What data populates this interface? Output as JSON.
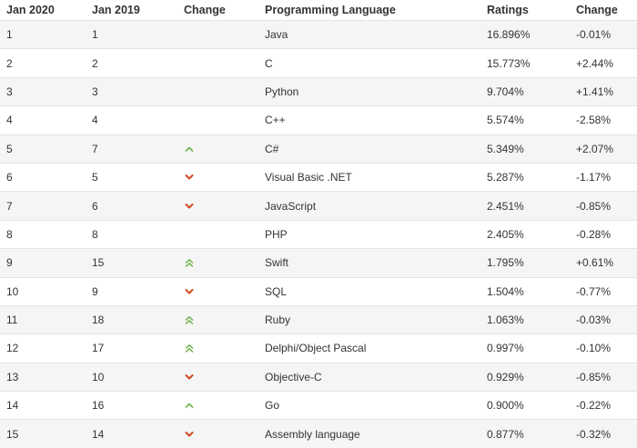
{
  "headers": [
    "Jan 2020",
    "Jan 2019",
    "Change",
    "Programming Language",
    "Ratings",
    "Change"
  ],
  "colors": {
    "up": "#6cb24a",
    "down": "#cf4b1f"
  },
  "rows": [
    {
      "rank": "1",
      "prev": "1",
      "change": "none",
      "language": "Java",
      "rating": "16.896%",
      "delta": "-0.01%"
    },
    {
      "rank": "2",
      "prev": "2",
      "change": "none",
      "language": "C",
      "rating": "15.773%",
      "delta": "+2.44%"
    },
    {
      "rank": "3",
      "prev": "3",
      "change": "none",
      "language": "Python",
      "rating": "9.704%",
      "delta": "+1.41%"
    },
    {
      "rank": "4",
      "prev": "4",
      "change": "none",
      "language": "C++",
      "rating": "5.574%",
      "delta": "-2.58%"
    },
    {
      "rank": "5",
      "prev": "7",
      "change": "up",
      "language": "C#",
      "rating": "5.349%",
      "delta": "+2.07%"
    },
    {
      "rank": "6",
      "prev": "5",
      "change": "down",
      "language": "Visual Basic .NET",
      "rating": "5.287%",
      "delta": "-1.17%"
    },
    {
      "rank": "7",
      "prev": "6",
      "change": "down",
      "language": "JavaScript",
      "rating": "2.451%",
      "delta": "-0.85%"
    },
    {
      "rank": "8",
      "prev": "8",
      "change": "none",
      "language": "PHP",
      "rating": "2.405%",
      "delta": "-0.28%"
    },
    {
      "rank": "9",
      "prev": "15",
      "change": "up-double",
      "language": "Swift",
      "rating": "1.795%",
      "delta": "+0.61%"
    },
    {
      "rank": "10",
      "prev": "9",
      "change": "down",
      "language": "SQL",
      "rating": "1.504%",
      "delta": "-0.77%"
    },
    {
      "rank": "11",
      "prev": "18",
      "change": "up-double",
      "language": "Ruby",
      "rating": "1.063%",
      "delta": "-0.03%"
    },
    {
      "rank": "12",
      "prev": "17",
      "change": "up-double",
      "language": "Delphi/Object Pascal",
      "rating": "0.997%",
      "delta": "-0.10%"
    },
    {
      "rank": "13",
      "prev": "10",
      "change": "down",
      "language": "Objective-C",
      "rating": "0.929%",
      "delta": "-0.85%"
    },
    {
      "rank": "14",
      "prev": "16",
      "change": "up",
      "language": "Go",
      "rating": "0.900%",
      "delta": "-0.22%"
    },
    {
      "rank": "15",
      "prev": "14",
      "change": "down",
      "language": "Assembly language",
      "rating": "0.877%",
      "delta": "-0.32%"
    }
  ]
}
